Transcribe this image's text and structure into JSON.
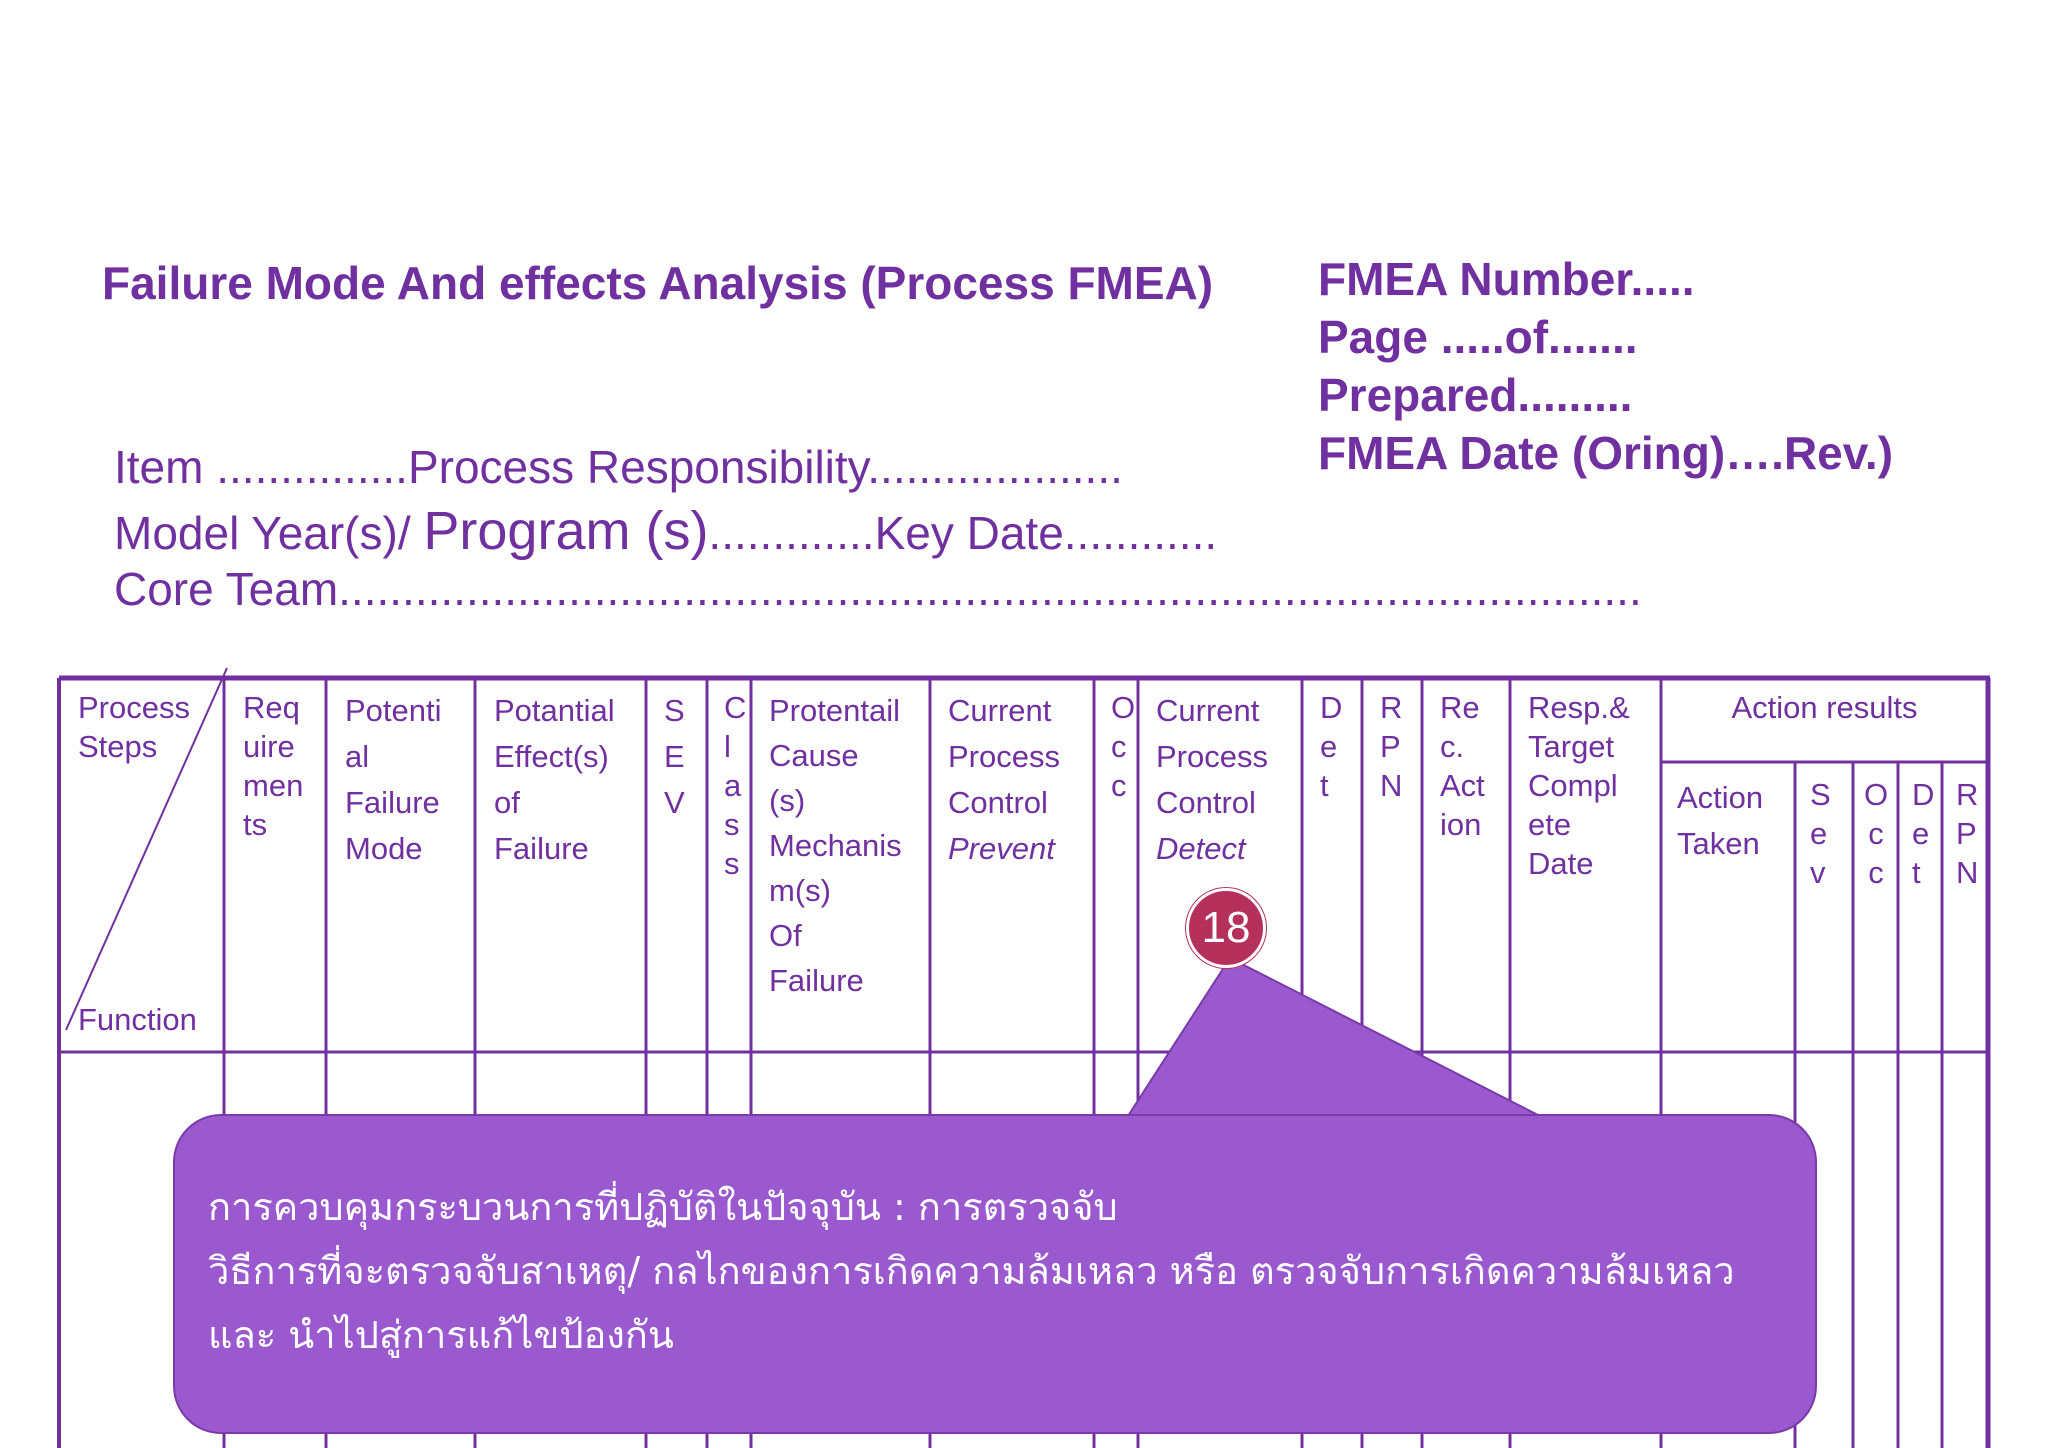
{
  "title": "Failure Mode And effects Analysis (Process FMEA)",
  "meta": [
    "FMEA Number.....",
    "Page .....of.......",
    "Prepared.........",
    "FMEA Date (Oring)….Rev.)"
  ],
  "header_lines": {
    "line1": "Item ...............Process Responsibility....................",
    "line2_a": "Model Year(s)/ ",
    "line2_b": "Program (s)",
    "line2_c": ".............Key Date............",
    "line3": "Core Team......................................................................................................"
  },
  "columns": {
    "process_steps": "Process\nSteps",
    "function": "Function",
    "requirements": "Req\nuire\nmen\nts",
    "failure_mode": "Potenti\nal\nFailure\nMode",
    "effects": "Potantial\nEffect(s)\nof\nFailure",
    "sev": "S\nE\nV",
    "class": "C\nl\na\ns\ns",
    "cause": "Protentail\nCause\n(s)\nMechanis\nm(s)\nOf\nFailure",
    "control_prevent_label": "Current\nProcess\nControl",
    "control_prevent_type": "Prevent",
    "occ": "O\nc\nc",
    "control_detect_label": "Current\nProcess\nControl",
    "control_detect_type": "Detect",
    "det": "D\ne\nt",
    "rpn": "R\nP\nN",
    "rec_action": "Re\nc.\nAct\nion",
    "resp_target": "Resp.&\nTarget\nCompl\nete\nDate",
    "action_results": "Action results",
    "action_taken": "Action\nTaken",
    "res_sev": "S\ne\nv",
    "res_occ": "O\nc\nc",
    "res_det": "D\ne\nt",
    "res_rpn": "R\nP\nN"
  },
  "badge": "18",
  "callout": {
    "line1": "การควบคุมกระบวนการที่ปฏิบัติในปัจจุบัน : การตรวจจับ",
    "line2": "วิธีการที่จะตรวจจับสาเหตุ/ กลไกของการเกิดความล้มเหลว หรือ ตรวจจับการเกิดความล้มเหลว",
    "line3": "และ นำไปสู่การแก้ไขป้องกัน"
  },
  "colors": {
    "text": "#7030a0",
    "callout": "#9b59d0",
    "badge": "#b5315c"
  }
}
